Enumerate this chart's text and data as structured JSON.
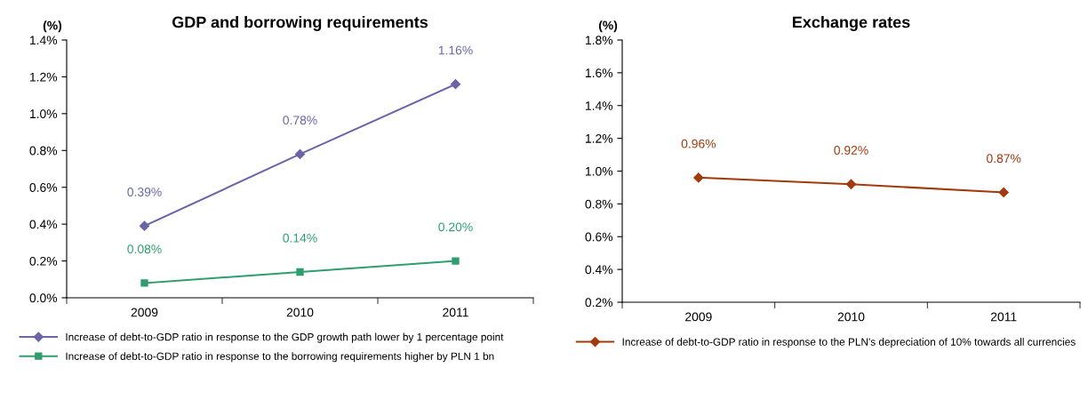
{
  "chart_data": [
    {
      "type": "line",
      "title": "GDP and borrowing requirements",
      "ylabel": "(%)",
      "categories": [
        "2009",
        "2010",
        "2011"
      ],
      "ylim": [
        0,
        1.4
      ],
      "yticks": [
        {
          "value": 0,
          "label": "0.0%"
        },
        {
          "value": 0.2,
          "label": "0.2%"
        },
        {
          "value": 0.4,
          "label": "0.4%"
        },
        {
          "value": 0.6,
          "label": "0.6%"
        },
        {
          "value": 0.8,
          "label": "0.8%"
        },
        {
          "value": 1.0,
          "label": "1.0%"
        },
        {
          "value": 1.2,
          "label": "1.2%"
        },
        {
          "value": 1.4,
          "label": "1.4%"
        }
      ],
      "series": [
        {
          "name": "Increase of debt-to-GDP ratio in response to the GDP growth path lower by 1 percentage point",
          "color": "#6a64a8",
          "marker": "diamond",
          "values": [
            0.39,
            0.78,
            1.16
          ],
          "value_labels": [
            "0.39%",
            "0.78%",
            "1.16%"
          ]
        },
        {
          "name": "Increase of debt-to-GDP ratio in response to the borrowing requirements higher by PLN 1 bn",
          "color": "#2e9e6e",
          "marker": "square",
          "values": [
            0.08,
            0.14,
            0.2
          ],
          "value_labels": [
            "0.08%",
            "0.14%",
            "0.20%"
          ]
        }
      ],
      "legend": "bottom",
      "grid": false,
      "line_style": "solid"
    },
    {
      "type": "line",
      "title": "Exchange rates",
      "ylabel": "(%)",
      "categories": [
        "2009",
        "2010",
        "2011"
      ],
      "ylim": [
        0.2,
        1.8
      ],
      "yticks": [
        {
          "value": 0.2,
          "label": "0.2%"
        },
        {
          "value": 0.4,
          "label": "0.4%"
        },
        {
          "value": 0.6,
          "label": "0.6%"
        },
        {
          "value": 0.8,
          "label": "0.8%"
        },
        {
          "value": 1.0,
          "label": "1.0%"
        },
        {
          "value": 1.2,
          "label": "1.2%"
        },
        {
          "value": 1.4,
          "label": "1.4%"
        },
        {
          "value": 1.6,
          "label": "1.6%"
        },
        {
          "value": 1.8,
          "label": "1.8%"
        }
      ],
      "series": [
        {
          "name": "Increase of debt-to-GDP ratio in response to the PLN's depreciation of 10% towards all currencies",
          "color": "#a33a0c",
          "marker": "diamond",
          "values": [
            0.96,
            0.92,
            0.87
          ],
          "value_labels": [
            "0.96%",
            "0.92%",
            "0.87%"
          ]
        }
      ],
      "legend": "bottom",
      "grid": false,
      "line_style": "solid"
    }
  ]
}
